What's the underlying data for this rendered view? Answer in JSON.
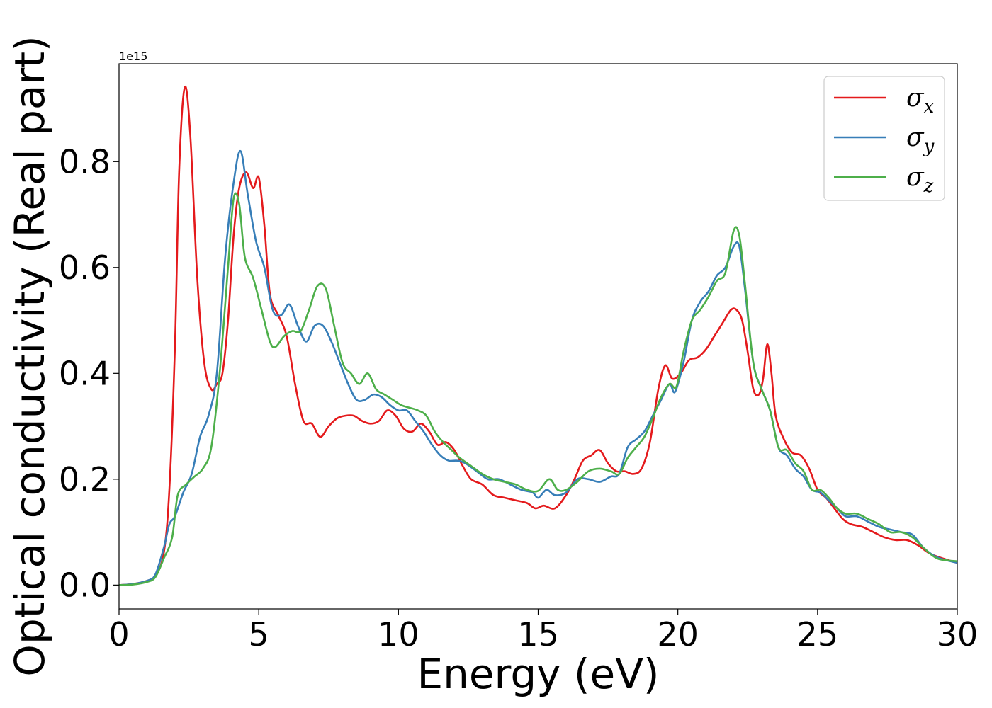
{
  "chart_data": {
    "type": "line",
    "title": "",
    "xlabel": "Energy (eV)",
    "ylabel": "Optical conductivity (Real part)",
    "y_offset_text": "1e15",
    "xlim": [
      0,
      30
    ],
    "ylim": [
      -0.045,
      0.985
    ],
    "xticks": [
      0,
      5,
      10,
      15,
      20,
      25,
      30
    ],
    "xtick_labels": [
      "0",
      "5",
      "10",
      "15",
      "20",
      "25",
      "30"
    ],
    "yticks": [
      0.0,
      0.2,
      0.4,
      0.6,
      0.8
    ],
    "ytick_labels": [
      "0.0",
      "0.2",
      "0.4",
      "0.6",
      "0.8"
    ],
    "grid": false,
    "legend_position": "top-right",
    "series": [
      {
        "name": "σx",
        "name_base": "σ",
        "name_sub": "x",
        "color": "#e41a1c",
        "x": [
          0,
          0.5,
          1.0,
          1.3,
          1.6,
          1.8,
          2.0,
          2.15,
          2.35,
          2.55,
          2.8,
          3.05,
          3.3,
          3.5,
          3.7,
          3.9,
          4.1,
          4.3,
          4.55,
          4.8,
          5.0,
          5.2,
          5.4,
          5.7,
          6.0,
          6.3,
          6.6,
          6.9,
          7.2,
          7.5,
          7.8,
          8.1,
          8.4,
          8.7,
          9.0,
          9.3,
          9.6,
          9.9,
          10.2,
          10.5,
          10.8,
          11.1,
          11.4,
          11.7,
          12.0,
          12.3,
          12.6,
          13.0,
          13.4,
          13.8,
          14.2,
          14.6,
          14.9,
          15.2,
          15.6,
          16.0,
          16.3,
          16.6,
          16.9,
          17.2,
          17.5,
          17.8,
          18.1,
          18.4,
          18.7,
          19.0,
          19.3,
          19.55,
          19.8,
          20.1,
          20.4,
          20.7,
          21.0,
          21.3,
          21.6,
          21.9,
          22.1,
          22.3,
          22.5,
          22.7,
          22.9,
          23.05,
          23.2,
          23.35,
          23.5,
          23.8,
          24.1,
          24.4,
          24.7,
          25.0,
          25.3,
          25.6,
          25.9,
          26.2,
          26.6,
          27.0,
          27.4,
          27.8,
          28.2,
          28.6,
          29.0,
          29.5,
          30.0
        ],
        "y": [
          0.0,
          0.002,
          0.008,
          0.018,
          0.06,
          0.18,
          0.45,
          0.78,
          0.94,
          0.85,
          0.58,
          0.42,
          0.37,
          0.38,
          0.4,
          0.5,
          0.66,
          0.75,
          0.78,
          0.75,
          0.77,
          0.68,
          0.55,
          0.51,
          0.47,
          0.38,
          0.31,
          0.305,
          0.28,
          0.3,
          0.315,
          0.32,
          0.32,
          0.31,
          0.305,
          0.31,
          0.33,
          0.32,
          0.295,
          0.29,
          0.305,
          0.29,
          0.265,
          0.27,
          0.255,
          0.225,
          0.2,
          0.19,
          0.17,
          0.165,
          0.16,
          0.155,
          0.145,
          0.15,
          0.145,
          0.17,
          0.2,
          0.235,
          0.245,
          0.255,
          0.23,
          0.215,
          0.215,
          0.21,
          0.22,
          0.27,
          0.37,
          0.415,
          0.39,
          0.4,
          0.425,
          0.43,
          0.445,
          0.47,
          0.495,
          0.52,
          0.52,
          0.5,
          0.44,
          0.37,
          0.36,
          0.39,
          0.455,
          0.4,
          0.32,
          0.275,
          0.25,
          0.245,
          0.22,
          0.18,
          0.165,
          0.145,
          0.125,
          0.115,
          0.11,
          0.1,
          0.09,
          0.085,
          0.085,
          0.075,
          0.06,
          0.05,
          0.042
        ]
      },
      {
        "name": "σy",
        "name_base": "σ",
        "name_sub": "y",
        "color": "#377eb8",
        "x": [
          0,
          0.5,
          1.0,
          1.3,
          1.6,
          1.8,
          2.0,
          2.3,
          2.6,
          2.9,
          3.2,
          3.5,
          3.8,
          4.1,
          4.35,
          4.6,
          4.9,
          5.2,
          5.5,
          5.8,
          6.1,
          6.4,
          6.7,
          7.0,
          7.3,
          7.6,
          7.9,
          8.2,
          8.5,
          8.8,
          9.1,
          9.4,
          9.7,
          10.0,
          10.3,
          10.6,
          10.9,
          11.2,
          11.5,
          11.8,
          12.1,
          12.4,
          12.8,
          13.2,
          13.6,
          14.0,
          14.4,
          14.8,
          15.0,
          15.3,
          15.6,
          16.0,
          16.4,
          16.8,
          17.2,
          17.6,
          17.9,
          18.2,
          18.5,
          18.8,
          19.1,
          19.4,
          19.7,
          19.9,
          20.2,
          20.5,
          20.8,
          21.1,
          21.4,
          21.7,
          22.0,
          22.2,
          22.4,
          22.7,
          23.0,
          23.3,
          23.6,
          23.9,
          24.2,
          24.5,
          24.8,
          25.1,
          25.4,
          25.7,
          26.0,
          26.4,
          26.8,
          27.2,
          27.6,
          28.0,
          28.4,
          28.8,
          29.3,
          30.0
        ],
        "y": [
          0.0,
          0.002,
          0.008,
          0.02,
          0.07,
          0.115,
          0.13,
          0.175,
          0.21,
          0.28,
          0.32,
          0.4,
          0.62,
          0.76,
          0.82,
          0.74,
          0.65,
          0.6,
          0.52,
          0.51,
          0.53,
          0.49,
          0.46,
          0.49,
          0.49,
          0.46,
          0.42,
          0.38,
          0.35,
          0.35,
          0.36,
          0.355,
          0.34,
          0.33,
          0.33,
          0.31,
          0.29,
          0.265,
          0.245,
          0.235,
          0.235,
          0.23,
          0.215,
          0.2,
          0.2,
          0.19,
          0.18,
          0.175,
          0.165,
          0.18,
          0.17,
          0.175,
          0.2,
          0.2,
          0.195,
          0.205,
          0.21,
          0.26,
          0.275,
          0.29,
          0.32,
          0.35,
          0.38,
          0.365,
          0.42,
          0.5,
          0.535,
          0.555,
          0.585,
          0.6,
          0.64,
          0.64,
          0.56,
          0.42,
          0.37,
          0.33,
          0.26,
          0.245,
          0.22,
          0.205,
          0.18,
          0.175,
          0.16,
          0.145,
          0.13,
          0.13,
          0.12,
          0.11,
          0.105,
          0.1,
          0.095,
          0.07,
          0.052,
          0.042
        ]
      },
      {
        "name": "σz",
        "name_base": "σ",
        "name_sub": "z",
        "color": "#4daf4a",
        "x": [
          0,
          0.5,
          1.0,
          1.3,
          1.6,
          1.9,
          2.1,
          2.4,
          2.7,
          3.0,
          3.3,
          3.6,
          3.9,
          4.1,
          4.3,
          4.5,
          4.8,
          5.1,
          5.4,
          5.6,
          5.9,
          6.2,
          6.5,
          6.8,
          7.1,
          7.4,
          7.7,
          8.0,
          8.3,
          8.6,
          8.9,
          9.2,
          9.5,
          9.8,
          10.1,
          10.4,
          10.7,
          11.0,
          11.3,
          11.6,
          11.9,
          12.2,
          12.6,
          13.0,
          13.4,
          13.8,
          14.2,
          14.6,
          15.0,
          15.4,
          15.7,
          16.0,
          16.4,
          16.8,
          17.2,
          17.6,
          17.9,
          18.2,
          18.5,
          18.8,
          19.1,
          19.4,
          19.7,
          19.95,
          20.2,
          20.5,
          20.8,
          21.1,
          21.4,
          21.7,
          22.0,
          22.2,
          22.4,
          22.7,
          23.0,
          23.3,
          23.6,
          23.9,
          24.2,
          24.5,
          24.8,
          25.1,
          25.4,
          25.7,
          26.0,
          26.4,
          26.8,
          27.2,
          27.6,
          28.0,
          28.4,
          28.8,
          29.3,
          30.0
        ],
        "y": [
          0.0,
          0.001,
          0.006,
          0.015,
          0.05,
          0.09,
          0.17,
          0.19,
          0.205,
          0.22,
          0.26,
          0.4,
          0.6,
          0.73,
          0.72,
          0.62,
          0.58,
          0.52,
          0.46,
          0.45,
          0.47,
          0.48,
          0.48,
          0.52,
          0.565,
          0.56,
          0.49,
          0.42,
          0.4,
          0.38,
          0.4,
          0.37,
          0.36,
          0.35,
          0.34,
          0.335,
          0.33,
          0.32,
          0.29,
          0.27,
          0.255,
          0.24,
          0.225,
          0.21,
          0.2,
          0.195,
          0.19,
          0.18,
          0.178,
          0.2,
          0.18,
          0.18,
          0.195,
          0.215,
          0.22,
          0.215,
          0.21,
          0.24,
          0.26,
          0.28,
          0.315,
          0.355,
          0.38,
          0.375,
          0.44,
          0.5,
          0.52,
          0.545,
          0.575,
          0.59,
          0.67,
          0.66,
          0.57,
          0.42,
          0.37,
          0.33,
          0.26,
          0.255,
          0.23,
          0.215,
          0.18,
          0.18,
          0.165,
          0.145,
          0.135,
          0.135,
          0.125,
          0.115,
          0.1,
          0.1,
          0.09,
          0.07,
          0.05,
          0.045
        ]
      }
    ]
  }
}
